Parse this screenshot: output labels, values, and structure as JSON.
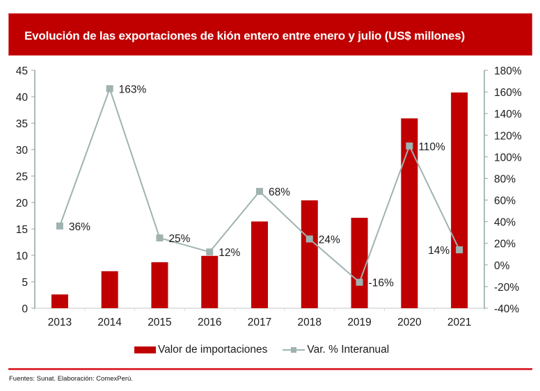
{
  "header": {
    "title": "Evolución de las exportaciones de kión entero entre enero y julio (US$ millones)"
  },
  "chart_data": {
    "type": "bar",
    "title": "Evolución de las exportaciones de kión entero entre enero y julio (US$ millones)",
    "categories": [
      "2013",
      "2014",
      "2015",
      "2016",
      "2017",
      "2018",
      "2019",
      "2020",
      "2021"
    ],
    "series": [
      {
        "name": "Valor de importaciones",
        "type": "bar",
        "axis": "left",
        "color": "#c00000",
        "values": [
          2.6,
          7.0,
          8.7,
          9.9,
          16.4,
          20.4,
          17.1,
          35.9,
          40.8
        ]
      },
      {
        "name": "Var. % Interanual",
        "type": "line",
        "axis": "right",
        "color": "#9fb3b0",
        "values": [
          36,
          163,
          25,
          12,
          68,
          24,
          -16,
          110,
          14
        ],
        "labels": [
          "36%",
          "163%",
          "25%",
          "12%",
          "68%",
          "24%",
          "-16%",
          "110%",
          "14%"
        ],
        "label_side": [
          "right",
          "right",
          "right",
          "right",
          "right",
          "right",
          "right",
          "right",
          "left"
        ]
      }
    ],
    "left_axis": {
      "ylim": [
        0,
        45
      ],
      "ticks": [
        0,
        5,
        10,
        15,
        20,
        25,
        30,
        35,
        40,
        45
      ],
      "tick_labels": [
        "0",
        "5",
        "10",
        "15",
        "20",
        "25",
        "30",
        "35",
        "40",
        "45"
      ]
    },
    "right_axis": {
      "ylim": [
        -40,
        180
      ],
      "ticks": [
        -40,
        -20,
        0,
        20,
        40,
        60,
        80,
        100,
        120,
        140,
        160,
        180
      ],
      "tick_labels": [
        "-40%",
        "-20%",
        "0%",
        "20%",
        "40%",
        "60%",
        "80%",
        "100%",
        "120%",
        "140%",
        "160%",
        "180%"
      ]
    },
    "xlabel": "",
    "ylabel": "",
    "grid": false,
    "legend_position": "bottom"
  },
  "legend": {
    "bar_label": "Valor de importaciones",
    "line_label": "Var. % Interanual"
  },
  "footer": {
    "source": "Fuentes: Sunat. Elaboración: ComexPerú."
  }
}
